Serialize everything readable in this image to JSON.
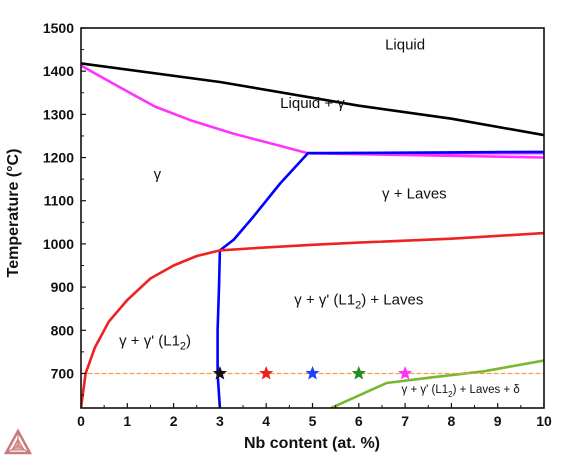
{
  "chart_data": {
    "type": "line",
    "xlabel": "Nb content (at. %)",
    "ylabel": "Temperature (°C)",
    "xlim": [
      0,
      10
    ],
    "ylim": [
      620,
      1500
    ],
    "xticks": [
      "0",
      "1",
      "2",
      "3",
      "4",
      "5",
      "6",
      "7",
      "8",
      "9",
      "10"
    ],
    "yticks": [
      "700",
      "800",
      "900",
      "1000",
      "1100",
      "1200",
      "1300",
      "1400",
      "1500"
    ],
    "grid": false,
    "series": [
      {
        "color": "#000000",
        "points": [
          [
            0,
            1418
          ],
          [
            3,
            1375
          ],
          [
            6,
            1320
          ],
          [
            8,
            1290
          ],
          [
            10,
            1252
          ]
        ]
      },
      {
        "color": "#ff33ff",
        "points": [
          [
            0,
            1413
          ],
          [
            0.8,
            1365
          ],
          [
            1.6,
            1318
          ],
          [
            2.4,
            1285
          ],
          [
            3.3,
            1255
          ],
          [
            4.2,
            1230
          ],
          [
            4.9,
            1210
          ],
          [
            6,
            1210
          ],
          [
            10,
            1210
          ]
        ]
      },
      {
        "color": "#ff33ff",
        "points": [
          [
            4.9,
            1210
          ],
          [
            10,
            1200
          ]
        ]
      },
      {
        "color": "#0000ff",
        "points": [
          [
            4.9,
            1210
          ],
          [
            10,
            1213
          ]
        ]
      },
      {
        "color": "#0000ff",
        "points": [
          [
            4.9,
            1210
          ],
          [
            4.3,
            1140
          ],
          [
            3.7,
            1060
          ],
          [
            3.3,
            1010
          ],
          [
            3.0,
            985
          ],
          [
            2.98,
            900
          ],
          [
            2.95,
            800
          ],
          [
            2.95,
            700
          ],
          [
            3.0,
            620
          ]
        ]
      },
      {
        "color": "#ee2222",
        "points": [
          [
            0,
            620
          ],
          [
            0.1,
            700
          ],
          [
            0.3,
            760
          ],
          [
            0.6,
            820
          ],
          [
            1.0,
            870
          ],
          [
            1.5,
            920
          ],
          [
            2.0,
            950
          ],
          [
            2.5,
            972
          ],
          [
            3.0,
            985
          ],
          [
            4.0,
            992
          ],
          [
            5.0,
            998
          ],
          [
            6.0,
            1003
          ],
          [
            8.0,
            1012
          ],
          [
            10,
            1025
          ]
        ]
      },
      {
        "color": "#77b82e",
        "points": [
          [
            5.4,
            620
          ],
          [
            6.6,
            678
          ],
          [
            7.5,
            690
          ],
          [
            8.7,
            705
          ],
          [
            10,
            730
          ]
        ]
      },
      {
        "color": "#f5a050",
        "dashed": true,
        "points": [
          [
            0,
            700
          ],
          [
            10,
            700
          ]
        ]
      }
    ],
    "markers": [
      {
        "x": 3,
        "y": 700,
        "color": "#111111"
      },
      {
        "x": 4,
        "y": 700,
        "color": "#ee2222"
      },
      {
        "x": 5,
        "y": 700,
        "color": "#1f3fff"
      },
      {
        "x": 6,
        "y": 700,
        "color": "#1f8f1f"
      },
      {
        "x": 7,
        "y": 700,
        "color": "#ff33ff"
      }
    ],
    "annotations": [
      {
        "id": "liquid",
        "text": "Liquid",
        "x": 7.0,
        "y": 1450
      },
      {
        "id": "liquid-gamma",
        "text": "Liquid + γ",
        "x": 5.0,
        "y": 1315
      },
      {
        "id": "gamma",
        "text": "γ",
        "x": 1.65,
        "y": 1150
      },
      {
        "id": "gamma-laves",
        "text": "γ + Laves",
        "x": 7.2,
        "y": 1105
      },
      {
        "id": "gamma-l12-laves",
        "main": "γ + γ' (L1",
        "sub": "2",
        "tail": ") + Laves",
        "x": 6.0,
        "y": 860
      },
      {
        "id": "gamma-l12",
        "main": "γ + γ' (L1",
        "sub": "2",
        "tail": ")",
        "x": 1.6,
        "y": 765
      },
      {
        "id": "gamma-l12-laves-delta",
        "main": "γ + γ' (L1",
        "sub": "2",
        "tail": ") + Laves + δ",
        "x": 8.2,
        "y": 655,
        "small": true
      }
    ]
  },
  "logo": {
    "name": "thermo-calc-logo",
    "colors": [
      "#c87b7b",
      "#e8aaaa"
    ]
  }
}
